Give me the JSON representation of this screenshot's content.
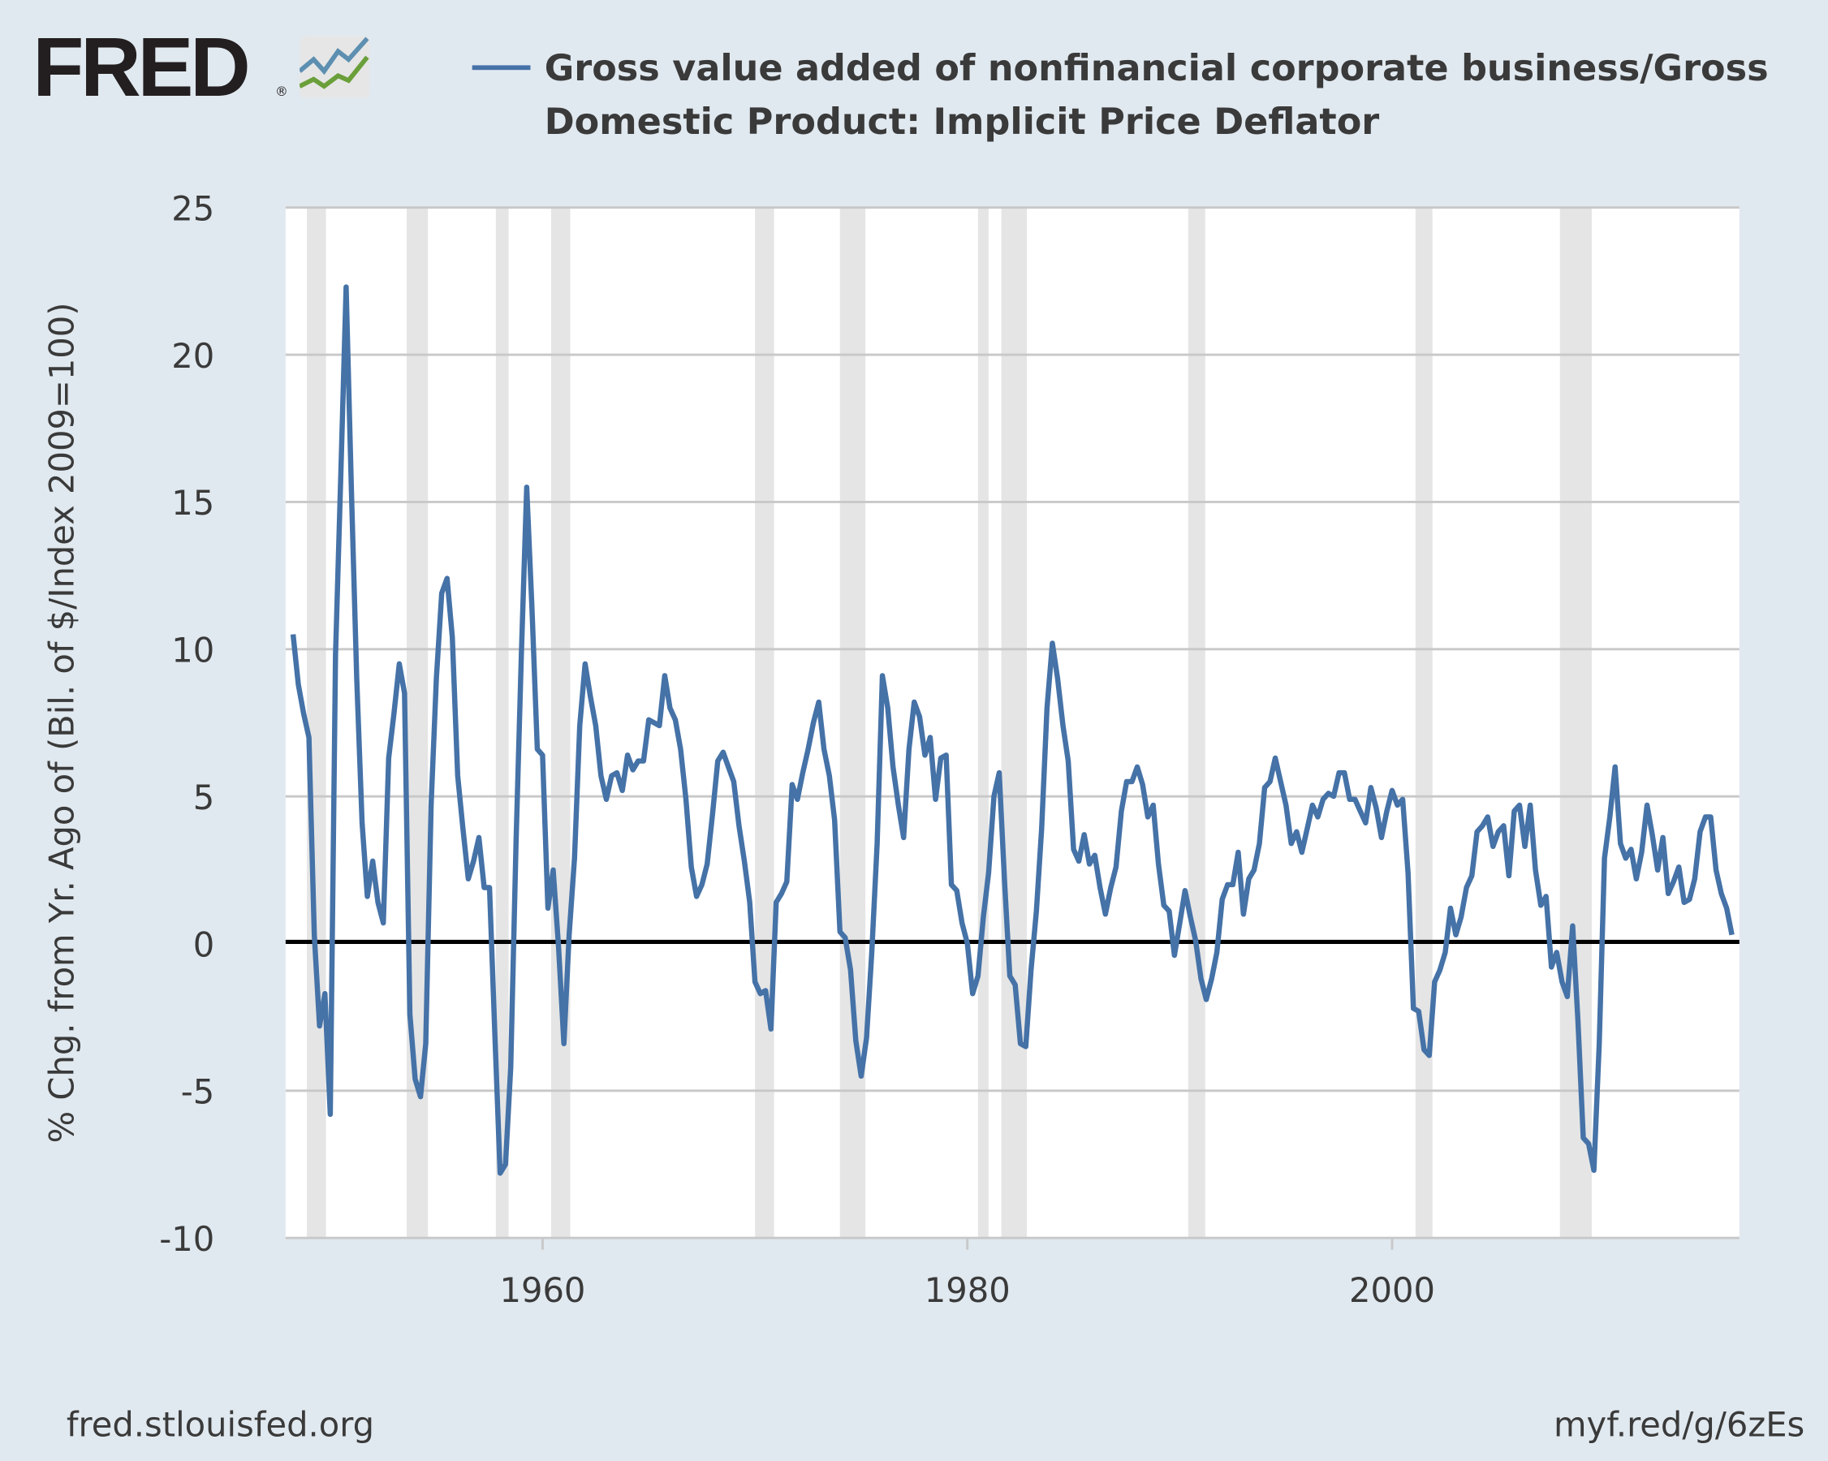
{
  "logo": {
    "text": "FRED",
    "registered": "®"
  },
  "footer": {
    "source": "fred.stlouisfed.org",
    "short_link": "myf.red/g/6zEs"
  },
  "colors": {
    "series": "#4572a7",
    "background": "#e1e9f0",
    "recession": "#e5e5e5",
    "grid": "#c8c8c8",
    "zero_line": "#000000"
  },
  "chart_data": {
    "type": "line",
    "title": "",
    "legend": [
      {
        "name": "Gross value added of nonfinancial corporate business/Gross Domestic Product: Implicit Price Deflator",
        "color": "#4572a7"
      }
    ],
    "legend_lines": [
      "Gross value added of nonfinancial corporate business/Gross",
      "Domestic Product: Implicit Price Deflator"
    ],
    "legend_placement": "top",
    "xlabel": "",
    "ylabel": "% Chg. from Yr. Ago of (Bil. of $/Index 2009=100)",
    "xlim": [
      1947.9,
      2016.35
    ],
    "ylim": [
      -10,
      25
    ],
    "yticks": [
      -10,
      -5,
      0,
      5,
      10,
      15,
      20,
      25
    ],
    "ytick_labels": [
      "-10",
      "-5",
      "0",
      "5",
      "10",
      "15",
      "20",
      "25"
    ],
    "xticks": [
      1960,
      1980,
      2000
    ],
    "xtick_labels": [
      "1960",
      "1980",
      "2000"
    ],
    "grid": true,
    "x_start": 1948.25,
    "x_step": 0.25,
    "recessions": [
      [
        1948.9,
        1949.8
      ],
      [
        1953.6,
        1954.6
      ],
      [
        1957.8,
        1958.4
      ],
      [
        1960.4,
        1961.3
      ],
      [
        1970.0,
        1970.9
      ],
      [
        1974.0,
        1975.2
      ],
      [
        1980.5,
        1981.0
      ],
      [
        1981.6,
        1982.8
      ],
      [
        1990.4,
        1991.2
      ],
      [
        2001.1,
        2001.9
      ],
      [
        2007.9,
        2009.4
      ]
    ],
    "series": [
      {
        "name": "Gross value added of nonfinancial corporate business/Gross Domestic Product: Implicit Price Deflator",
        "values": [
          10.5,
          8.8,
          7.8,
          7.0,
          0.3,
          -2.8,
          -1.7,
          -5.8,
          9.8,
          16,
          22.3,
          15.3,
          9,
          4.1,
          1.6,
          2.8,
          1.4,
          0.7,
          6.3,
          7.8,
          9.5,
          8.5,
          -2.4,
          -4.6,
          -5.2,
          -3.4,
          4.7,
          9,
          11.9,
          12.4,
          10.4,
          5.7,
          3.9,
          2.2,
          2.8,
          3.6,
          1.9,
          1.9,
          -3,
          -7.8,
          -7.5,
          -4.2,
          3.5,
          9.8,
          15.5,
          11.4,
          6.6,
          6.4,
          1.2,
          2.5,
          -0.1,
          -3.4,
          0.3,
          2.9,
          7.4,
          9.5,
          8.4,
          7.4,
          5.7,
          4.9,
          5.7,
          5.8,
          5.2,
          6.4,
          5.9,
          6.2,
          6.2,
          7.6,
          7.5,
          7.4,
          9.1,
          8,
          7.6,
          6.6,
          4.9,
          2.6,
          1.6,
          2,
          2.7,
          4.4,
          6.2,
          6.5,
          6,
          5.5,
          4,
          2.8,
          1.4,
          -1.3,
          -1.7,
          -1.6,
          -2.9,
          1.4,
          1.7,
          2.1,
          5.4,
          4.9,
          5.8,
          6.6,
          7.5,
          8.2,
          6.6,
          5.7,
          4.2,
          0.4,
          0.2,
          -0.9,
          -3.3,
          -4.5,
          -3.2,
          -0.3,
          3.4,
          9.1,
          8,
          6,
          4.7,
          3.6,
          6.6,
          8.2,
          7.7,
          6.4,
          7,
          4.9,
          6.3,
          6.4,
          2,
          1.8,
          0.7,
          0,
          -1.7,
          -1.1,
          0.9,
          2.4,
          5,
          5.8,
          2.1,
          -1.1,
          -1.4,
          -3.4,
          -3.5,
          -0.9,
          1.1,
          3.9,
          8,
          10.2,
          9,
          7.4,
          6.2,
          3.2,
          2.8,
          3.7,
          2.7,
          3,
          1.9,
          1,
          1.9,
          2.6,
          4.5,
          5.5,
          5.5,
          6,
          5.4,
          4.3,
          4.7,
          2.7,
          1.3,
          1.1,
          -0.4,
          0.7,
          1.8,
          0.9,
          0.1,
          -1.2,
          -1.9,
          -1.2,
          -0.3,
          1.5,
          2,
          2,
          3.1,
          1,
          2.2,
          2.5,
          3.4,
          5.3,
          5.5,
          6.3,
          5.5,
          4.7,
          3.4,
          3.8,
          3.1,
          3.9,
          4.7,
          4.3,
          4.9,
          5.1,
          5,
          5.8,
          5.8,
          4.9,
          4.9,
          4.5,
          4.1,
          5.3,
          4.6,
          3.6,
          4.5,
          5.2,
          4.7,
          4.9,
          2.4,
          -2.2,
          -2.3,
          -3.6,
          -3.8,
          -1.3,
          -0.9,
          -0.3,
          1.2,
          0.3,
          0.9,
          1.9,
          2.3,
          3.8,
          4,
          4.3,
          3.3,
          3.8,
          4,
          2.3,
          4.5,
          4.7,
          3.3,
          4.7,
          2.5,
          1.3,
          1.6,
          -0.8,
          -0.3,
          -1.3,
          -1.8,
          0.6,
          -2.6,
          -6.6,
          -6.8,
          -7.7,
          -3.4,
          2.9,
          4.3,
          6,
          3.4,
          2.9,
          3.2,
          2.2,
          3.1,
          4.7,
          3.7,
          2.5,
          3.6,
          1.7,
          2.1,
          2.6,
          1.4,
          1.5,
          2.2,
          3.8,
          4.3,
          4.3,
          2.5,
          1.7,
          1.2,
          0.3
        ]
      }
    ]
  }
}
